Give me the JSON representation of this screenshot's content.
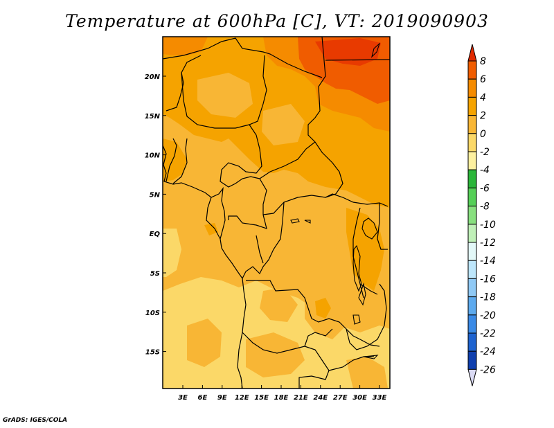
{
  "title": "Temperature at 600hPa [C], VT: 2019090903",
  "credit": "GrADS: IGES/COLA",
  "map": {
    "lat_ticks": [
      "20N",
      "15N",
      "10N",
      "5N",
      "EQ",
      "5S",
      "10S",
      "15S"
    ],
    "lon_ticks": [
      "3E",
      "6E",
      "9E",
      "12E",
      "15E",
      "18E",
      "21E",
      "24E",
      "27E",
      "30E",
      "33E"
    ]
  },
  "colorbar": {
    "levels": [
      "8",
      "6",
      "4",
      "2",
      "0",
      "-2",
      "-4",
      "-6",
      "-8",
      "-10",
      "-12",
      "-14",
      "-16",
      "-18",
      "-20",
      "-22",
      "-24",
      "-26"
    ],
    "colors": [
      "#e83a00",
      "#f05c00",
      "#f58b00",
      "#f5a300",
      "#f8b635",
      "#fbd868",
      "#fdf0a0",
      "#2bb63a",
      "#55cf57",
      "#88e07f",
      "#c0f0b8",
      "#e3f8f8",
      "#bde6fb",
      "#8fc9f5",
      "#5daaee",
      "#3a8ae6",
      "#1e63cf",
      "#0f3fae",
      "#041f86",
      "#080a5c",
      "#dfe0f5"
    ],
    "top_arrow_color": "#e02a00",
    "bottom_arrow_color": "#dadaf4"
  }
}
